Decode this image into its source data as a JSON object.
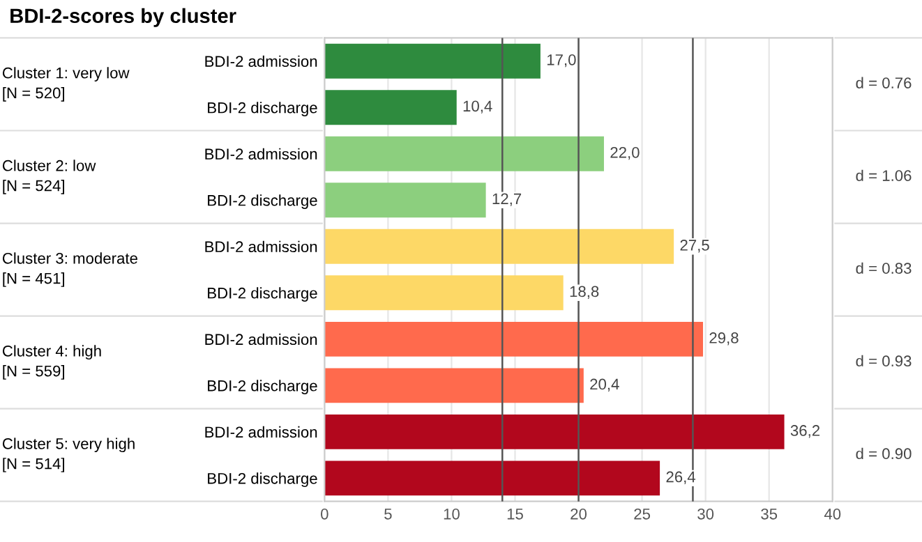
{
  "chart_data": {
    "type": "bar",
    "orientation": "horizontal",
    "title": "BDI-2-scores by cluster",
    "categories": [
      "BDI-2 admission",
      "BDI-2 discharge",
      "BDI-2 admission",
      "BDI-2 discharge",
      "BDI-2 admission",
      "BDI-2 discharge",
      "BDI-2 admission",
      "BDI-2 discharge",
      "BDI-2 admission",
      "BDI-2 discharge"
    ],
    "values": [
      17.0,
      10.4,
      22.0,
      12.7,
      27.5,
      18.8,
      29.8,
      20.4,
      36.2,
      26.4
    ],
    "value_labels": [
      "17,0",
      "10,4",
      "22,0",
      "12,7",
      "27,5",
      "18,8",
      "29,8",
      "20,4",
      "36,2",
      "26,4"
    ],
    "colors": [
      "#2e8b3e",
      "#2e8b3e",
      "#8ccf7e",
      "#8ccf7e",
      "#fdd866",
      "#fdd866",
      "#ff6a4d",
      "#ff6a4d",
      "#b2071d",
      "#b2071d"
    ],
    "xlim": [
      0,
      40
    ],
    "xticks": [
      0,
      5,
      10,
      15,
      20,
      25,
      30,
      35,
      40
    ],
    "grid": "x",
    "ref_lines": [
      {
        "axis": "x",
        "value": 14,
        "color": "#555555"
      },
      {
        "axis": "x",
        "value": 20,
        "color": "#555555"
      },
      {
        "axis": "x",
        "value": 29,
        "color": "#555555"
      }
    ],
    "annotations": [
      "Cluster 1: very low\n[N = 520]",
      "Cluster 2: low\n[N = 524]",
      "Cluster 3: moderate\n[N = 451]",
      "Cluster 4: high\n[N = 559]",
      "Cluster 5: very high\n[N = 514]",
      "d = 0.76",
      "d = 1.06",
      "d = 0.83",
      "d = 0.93",
      "d = 0.90"
    ]
  }
}
